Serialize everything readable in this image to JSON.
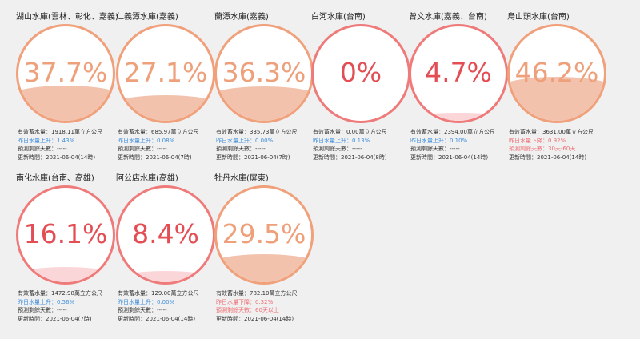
{
  "reservoirs": [
    {
      "name": "湖山水庫(雲林、彰化、嘉義)",
      "percent": "37.7%",
      "level": 0.377,
      "capacity": "有效蓄水量：1918.11萬立方公尺",
      "change": "昨日水量上升：1.43%",
      "trend": "up",
      "days": "預測剩餘天數：-----",
      "updated": "更新時間：2021-06-04(14時)",
      "color": "orange"
    },
    {
      "name": "仁義潭水庫(嘉義)",
      "percent": "27.1%",
      "level": 0.271,
      "capacity": "有效蓄水量：685.97萬立方公尺",
      "change": "昨日水量上升：0.08%",
      "trend": "up",
      "days": "預測剩餘天數：-----",
      "updated": "更新時間：2021-06-04(7時)",
      "color": "orange"
    },
    {
      "name": "蘭潭水庫(嘉義)",
      "percent": "36.3%",
      "level": 0.363,
      "capacity": "有效蓄水量：335.73萬立方公尺",
      "change": "昨日水量上升：0.00%",
      "trend": "up",
      "days": "預測剩餘天數：-----",
      "updated": "更新時間：2021-06-04(7時)",
      "color": "orange"
    },
    {
      "name": "白河水庫(台南)",
      "percent": "0%",
      "level": 0.0,
      "capacity": "有效蓄水量：0.00萬立方公尺",
      "change": "昨日水量上升：0.13%",
      "trend": "up",
      "days": "預測剩餘天數：-----",
      "updated": "更新時間：2021-06-04(8時)",
      "color": "red"
    },
    {
      "name": "曾文水庫(嘉義、台南)",
      "percent": "4.7%",
      "level": 0.047,
      "capacity": "有效蓄水量：2394.00萬立方公尺",
      "change": "昨日水量上升：0.10%",
      "trend": "up",
      "days": "預測剩餘天數：-----",
      "updated": "更新時間：2021-06-04(14時)",
      "color": "red"
    },
    {
      "name": "烏山頭水庫(台南)",
      "percent": "46.2%",
      "level": 0.462,
      "capacity": "有效蓄水量：3631.00萬立方公尺",
      "change": "昨日水量下降：0.92%",
      "trend": "down",
      "days": "預測剩餘天數：30天-60天",
      "updated": "更新時間：2021-06-04(14時)",
      "color": "orange"
    },
    {
      "name": "南化水庫(台南、高雄)",
      "percent": "16.1%",
      "level": 0.161,
      "capacity": "有效蓄水量：1472.98萬立方公尺",
      "change": "昨日水量上升：0.56%",
      "trend": "up",
      "days": "預測剩餘天數：-----",
      "updated": "更新時間：2021-06-04(7時)",
      "color": "red"
    },
    {
      "name": "阿公店水庫(高雄)",
      "percent": "8.4%",
      "level": 0.084,
      "capacity": "有效蓄水量：129.00萬立方公尺",
      "change": "昨日水量上升：0.00%",
      "trend": "up",
      "days": "預測剩餘天數：-----",
      "updated": "更新時間：2021-06-04(14時)",
      "color": "red"
    },
    {
      "name": "牡丹水庫(屏東)",
      "percent": "29.5%",
      "level": 0.295,
      "capacity": "有效蓄水量：782.10萬立方公尺",
      "change": "昨日水量下降：0.32%",
      "trend": "down",
      "days": "預測剩餘天數：60天以上",
      "updated": "更新時間：2021-06-04(14時)",
      "color": "orange"
    }
  ]
}
